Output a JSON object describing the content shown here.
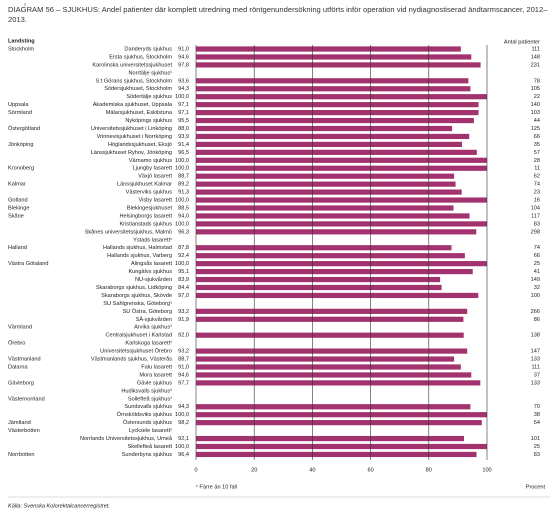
{
  "chart_data": {
    "type": "bar",
    "title": "DIAGRAM 56 – SJUKHUS: Andel patienter där komplett utredning med röntgenundersökning utförts inför operation vid nydiagnostiserad ändtarmscancer, 2012–2013.",
    "region_header": "Landsting",
    "patients_header": "Antal patienter",
    "footnote": "¹ Färre än 10 fall",
    "xlabel": "Procent",
    "source": "Källa: Svenska Kolorektalcancerregistret.",
    "color": "#a3336e",
    "grid": true,
    "xlim": [
      0,
      100
    ],
    "xticks": [
      0,
      20,
      40,
      60,
      80,
      100
    ],
    "categories": [
      "Danderyds sjukhus",
      "Ersta sjukhus, Stockholm",
      "Karolinska universitetssjukhuset",
      "Norrtälje sjukhus¹",
      "S:t Görans sjukhus, Stockholm",
      "Södersjukhuset, Stockholm",
      "Södertälje sjukhus",
      "Akademiska sjukhuset, Uppsala",
      "Mälarsjukhuset, Eskilstuna",
      "Nyköpings sjukhus",
      "Universitetssjukhuset i Linköping",
      "Vrinnevisjukhuset i Norrköping",
      "Höglandssjukhuset, Eksjö",
      "Länssjukhuset Ryhov, Jönköping",
      "Värnamo sjukhus",
      "Ljungby lasarett",
      "Växjö lasarett",
      "Länssjukhuset Kalmar",
      "Västerviks sjukhus",
      "Visby lasarett",
      "Blekingesjukhuset",
      "Helsingborgs lasarett",
      "Kristianstads sjukhus",
      "Skånes universitetssjukhus, Malmö",
      "Ystads lasarett¹",
      "Hallands sjukhus, Halmstad",
      "Hallands sjukhus, Varberg",
      "Alingsås lasarett",
      "Kungälvs sjukhus",
      "NU-sjukvården",
      "Skaraborgs sjukhus, Lidköping",
      "Skaraborgs sjukhus, Skövde",
      "SU Sahlgrenska, Göteborg¹",
      "SU Östra, Göteborg",
      "SÄ-sjukvården",
      "Arvika sjukhus¹",
      "Centralsjukhuset i Karlstad",
      "Karlskoga lasarett¹",
      "Universitetssjukhuset Örebro",
      "Västmanlands sjukhus, Västerås",
      "Falu lasarett",
      "Mora lasarett",
      "Gävle sjukhus",
      "Hudiksvalls sjukhus¹",
      "Sollefteå sjukhus¹",
      "Sundsvalls sjukhus",
      "Örnsköldsviks sjukhus",
      "Östersunds sjukhus",
      "Lycksele lasarett¹",
      "Norrlands Universitetssjukhus, Umeå",
      "Skellefteå lasarett",
      "Sunderbyns sjukhus"
    ],
    "regions": [
      "Stockholm",
      null,
      null,
      null,
      null,
      null,
      null,
      "Uppsala",
      "Sörmland",
      null,
      "Östergötland",
      null,
      "Jönköping",
      null,
      null,
      "Kronoberg",
      null,
      "Kalmar",
      null,
      "Gotland",
      "Blekinge",
      "Skåne",
      null,
      null,
      null,
      "Halland",
      null,
      "Västra Götaland",
      null,
      null,
      null,
      null,
      null,
      null,
      null,
      "Värmland",
      null,
      "Örebro",
      null,
      "Västmanland",
      "Dalarna",
      null,
      "Gävleborg",
      null,
      "Västernorrland",
      null,
      null,
      "Jämtland",
      "Västerbotten",
      null,
      null,
      "Norrbotten"
    ],
    "values": [
      91.0,
      94.6,
      97.8,
      null,
      93.6,
      94.3,
      100.0,
      97.1,
      97.1,
      95.5,
      88.0,
      93.9,
      91.4,
      96.5,
      100.0,
      100.0,
      88.7,
      89.2,
      91.3,
      100.0,
      88.5,
      94.0,
      100.0,
      96.3,
      null,
      87.8,
      92.4,
      100.0,
      95.1,
      83.9,
      84.4,
      97.0,
      null,
      93.2,
      91.9,
      null,
      92.0,
      null,
      93.2,
      88.7,
      91.0,
      94.6,
      97.7,
      null,
      null,
      94.3,
      100.0,
      98.2,
      null,
      92.1,
      100.0,
      96.4
    ],
    "value_labels": [
      "91,0",
      "94,6",
      "97,8",
      null,
      "93,6",
      "94,3",
      "100,0",
      "97,1",
      "97,1",
      "95,5",
      "88,0",
      "93,9",
      "91,4",
      "96,5",
      "100,0",
      "100,0",
      "88,7",
      "89,2",
      "91,3",
      "100,0",
      "88,5",
      "94,0",
      "100,0",
      "96,3",
      null,
      "87,8",
      "92,4",
      "100,0",
      "95,1",
      "83,9",
      "84,4",
      "97,0",
      null,
      "93,2",
      "91,9",
      null,
      "92,0",
      null,
      "93,2",
      "88,7",
      "91,0",
      "94,6",
      "97,7",
      null,
      null,
      "94,3",
      "100,0",
      "98,2",
      null,
      "92,1",
      "100,0",
      "96,4"
    ],
    "patients": [
      111,
      148,
      231,
      null,
      78,
      105,
      22,
      140,
      103,
      44,
      125,
      66,
      35,
      57,
      28,
      11,
      62,
      74,
      23,
      16,
      104,
      117,
      83,
      298,
      null,
      74,
      66,
      25,
      41,
      149,
      32,
      100,
      null,
      266,
      86,
      null,
      138,
      null,
      147,
      133,
      111,
      37,
      133,
      null,
      null,
      70,
      38,
      54,
      null,
      101,
      25,
      83
    ]
  }
}
